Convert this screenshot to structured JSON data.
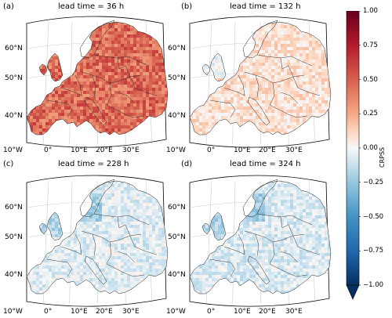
{
  "panels": [
    {
      "label": "(a)",
      "title": "lead time = 36 h",
      "mean_crpss": 0.45,
      "variability": 0.18
    },
    {
      "label": "(b)",
      "title": "lead time = 132 h",
      "mean_crpss": 0.08,
      "variability": 0.1
    },
    {
      "label": "(c)",
      "title": "lead time = 228 h",
      "mean_crpss": -0.06,
      "variability": 0.1
    },
    {
      "label": "(d)",
      "title": "lead time = 324 h",
      "mean_crpss": -0.07,
      "variability": 0.1
    }
  ],
  "latitude_labels": [
    "60°N",
    "50°N",
    "40°N"
  ],
  "longitude_labels": [
    "10°W",
    "0°",
    "10°E",
    "20°E",
    "30°E"
  ],
  "colorbar": {
    "label": "CRPSS",
    "ticks": [
      "1.00",
      "0.75",
      "0.50",
      "0.25",
      "0.00",
      "−0.25",
      "−0.50",
      "−0.75",
      "−1.00"
    ],
    "range": [
      -1.0,
      1.0
    ],
    "colormap": "RdBu_r",
    "color_max": "#67001f",
    "color_mid": "#f7f7f7",
    "color_min": "#053061"
  },
  "colors": {
    "sea": "#ffffff",
    "border": "#222222",
    "grid": "#cccccc"
  }
}
